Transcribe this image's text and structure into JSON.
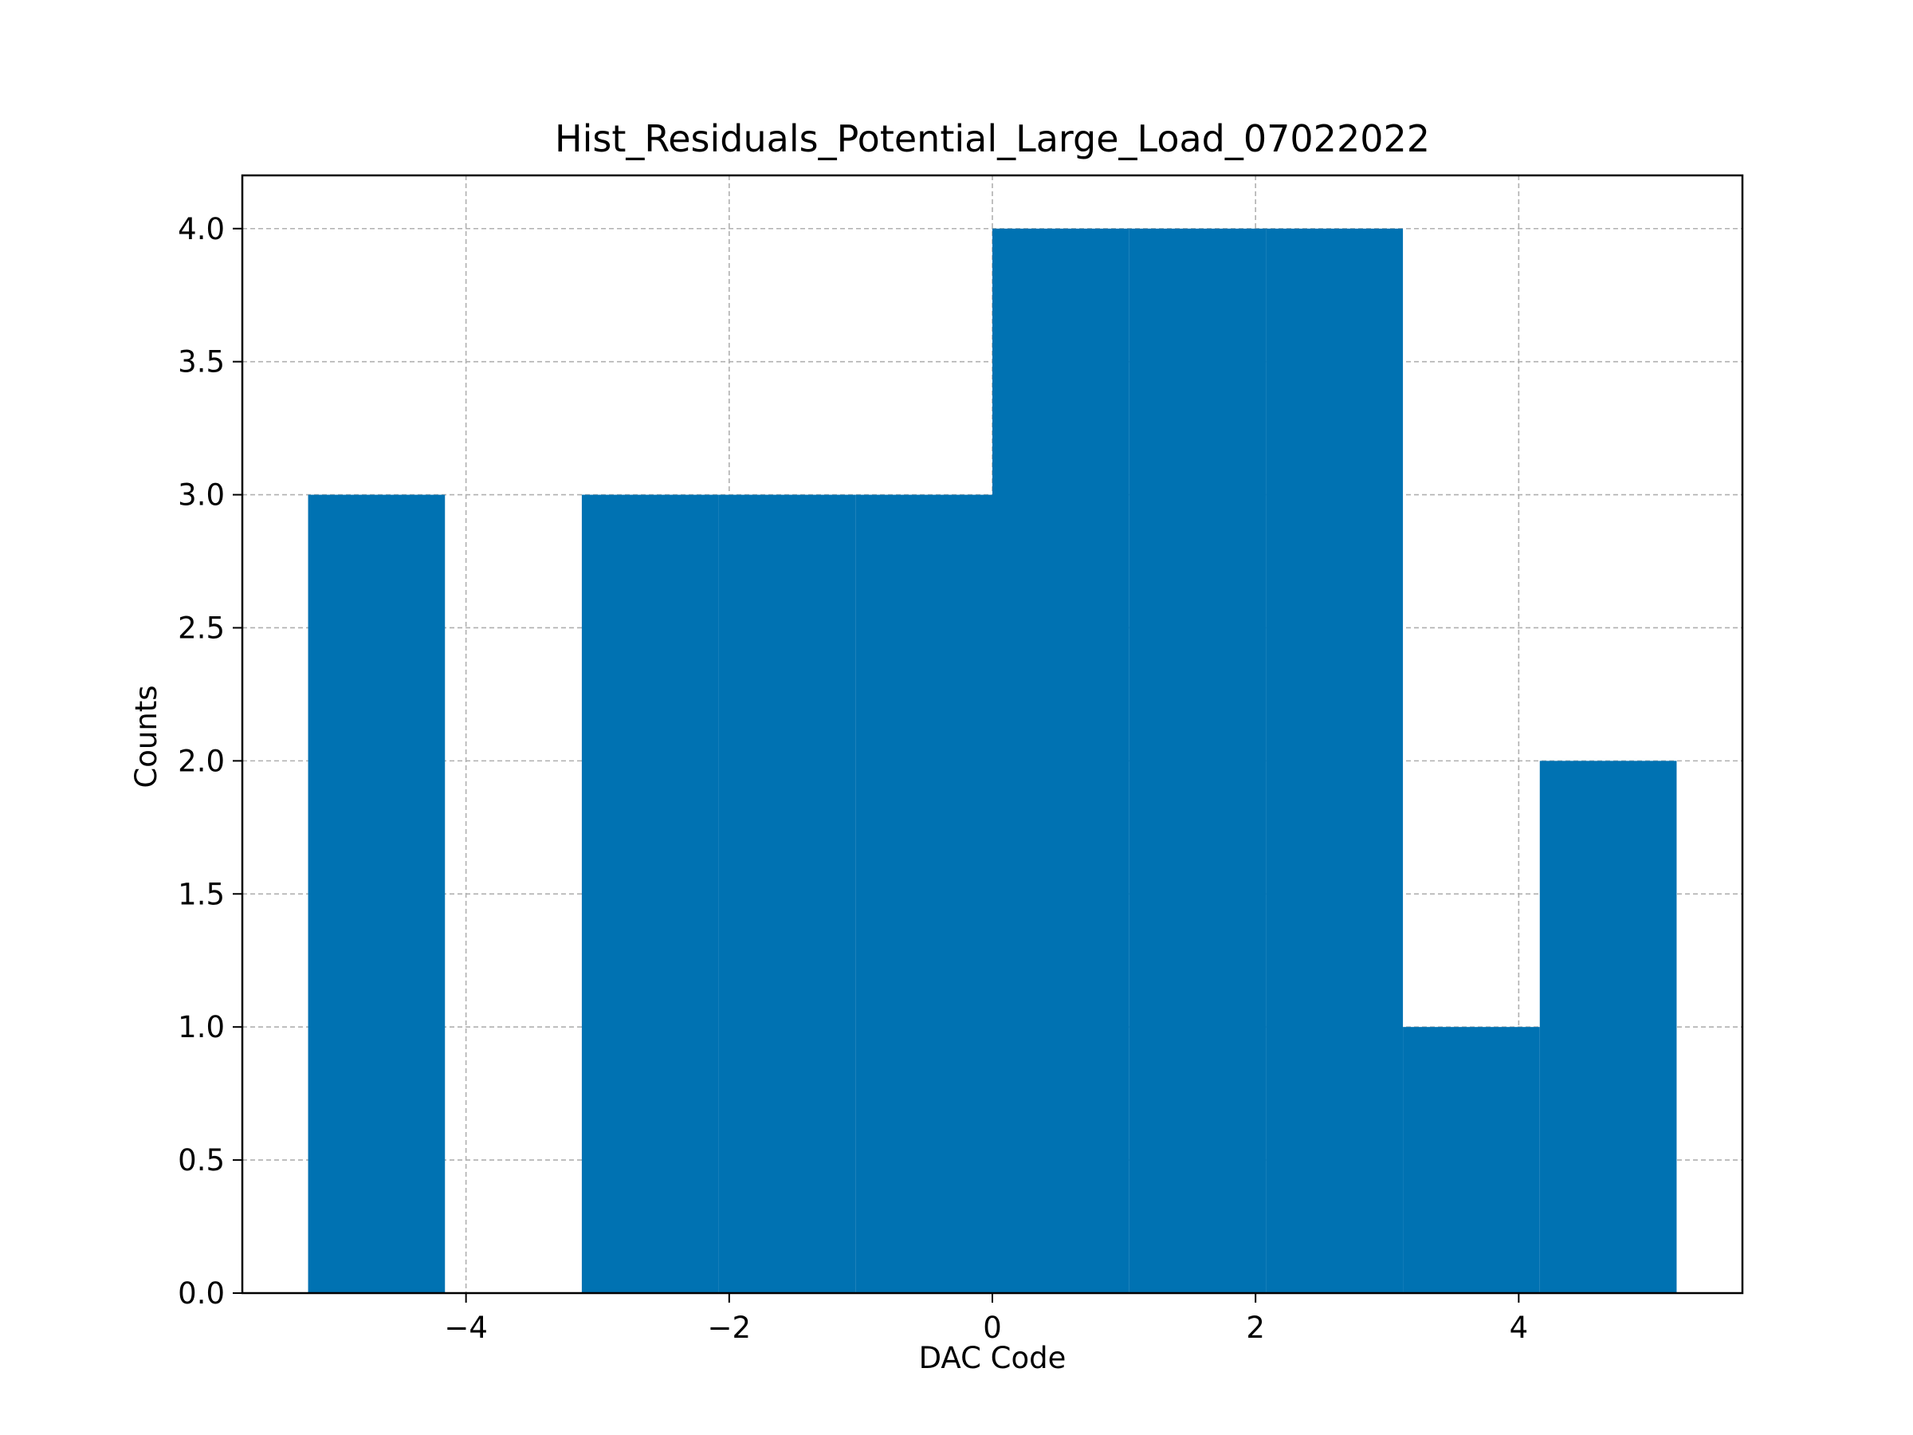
{
  "chart_data": {
    "type": "bar",
    "title": "Hist_Residuals_Potential_Large_Load_07022022",
    "xlabel": "DAC Code",
    "ylabel": "Counts",
    "xlim": [
      -5.7,
      5.7
    ],
    "ylim": [
      0,
      4.2
    ],
    "bins": [
      {
        "x0": -5.2,
        "x1": -4.16,
        "count": 3
      },
      {
        "x0": -4.16,
        "x1": -3.12,
        "count": 0
      },
      {
        "x0": -3.12,
        "x1": -2.08,
        "count": 3
      },
      {
        "x0": -2.08,
        "x1": -1.04,
        "count": 3
      },
      {
        "x0": -1.04,
        "x1": 0.0,
        "count": 3
      },
      {
        "x0": 0.0,
        "x1": 1.04,
        "count": 4
      },
      {
        "x0": 1.04,
        "x1": 2.08,
        "count": 4
      },
      {
        "x0": 2.08,
        "x1": 3.12,
        "count": 4
      },
      {
        "x0": 3.12,
        "x1": 4.16,
        "count": 1
      },
      {
        "x0": 4.16,
        "x1": 5.2,
        "count": 2
      }
    ],
    "xticks": [
      {
        "value": -4,
        "label": "−4"
      },
      {
        "value": -2,
        "label": "−2"
      },
      {
        "value": 0,
        "label": "0"
      },
      {
        "value": 2,
        "label": "2"
      },
      {
        "value": 4,
        "label": "4"
      }
    ],
    "yticks": [
      {
        "value": 0,
        "label": "0.0"
      },
      {
        "value": 0.5,
        "label": "0.5"
      },
      {
        "value": 1,
        "label": "1.0"
      },
      {
        "value": 1.5,
        "label": "1.5"
      },
      {
        "value": 2,
        "label": "2.0"
      },
      {
        "value": 2.5,
        "label": "2.5"
      },
      {
        "value": 3,
        "label": "3.0"
      },
      {
        "value": 3.5,
        "label": "3.5"
      },
      {
        "value": 4,
        "label": "4.0"
      }
    ],
    "grid": true,
    "bar_color": "#0072b2",
    "grid_color": "#b0b0b0"
  }
}
